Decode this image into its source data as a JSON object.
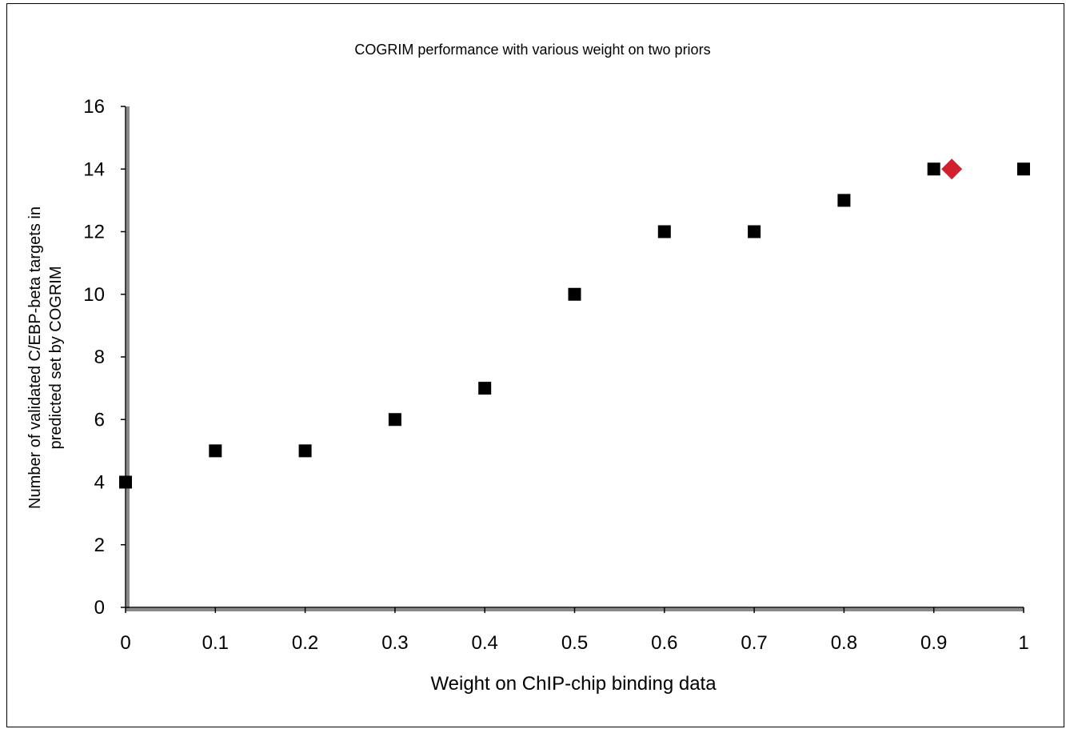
{
  "chart_data": {
    "type": "scatter",
    "title": "COGRIM performance with various weight on two priors",
    "xlabel": "Weight on ChIP-chip binding data",
    "ylabel_lines": [
      "Number of validated C/EBP-beta targets in",
      "predicted set by COGRIM"
    ],
    "xlim": [
      0,
      1
    ],
    "ylim": [
      0,
      16
    ],
    "xticks": [
      "0",
      "0.1",
      "0.2",
      "0.3",
      "0.4",
      "0.5",
      "0.6",
      "0.7",
      "0.8",
      "0.9",
      "1"
    ],
    "yticks": [
      "0",
      "2",
      "4",
      "6",
      "8",
      "10",
      "12",
      "14",
      "16"
    ],
    "grid": false,
    "legend": "none",
    "series": [
      {
        "marker": "square",
        "color": "#000000",
        "x": [
          0,
          0.1,
          0.2,
          0.3,
          0.4,
          0.5,
          0.6,
          0.7,
          0.8,
          0.9,
          1.0
        ],
        "y": [
          4,
          5,
          5,
          6,
          7,
          10,
          12,
          12,
          13,
          14,
          14
        ]
      },
      {
        "marker": "diamond",
        "color": "#d0202e",
        "x": [
          0.92
        ],
        "y": [
          14
        ]
      }
    ]
  }
}
